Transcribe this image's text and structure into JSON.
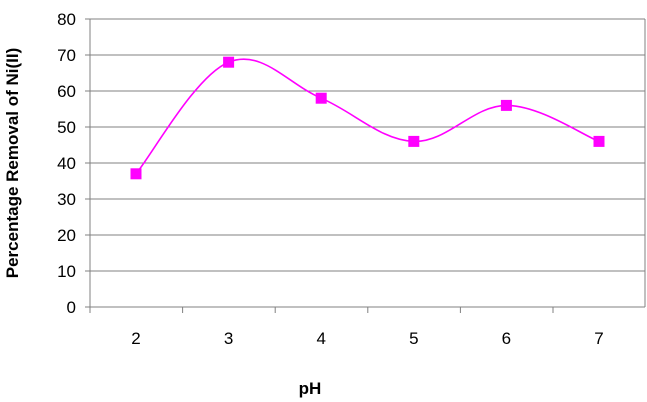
{
  "chart_data": {
    "type": "line",
    "title": "",
    "xlabel": "pH",
    "ylabel": "Percentage  Removal of  Ni(II)",
    "categories": [
      "2",
      "3",
      "4",
      "5",
      "6",
      "7"
    ],
    "series": [
      {
        "values": [
          37,
          68,
          58,
          46,
          56,
          46
        ]
      }
    ],
    "ylim": [
      0,
      80
    ],
    "yticks": [
      "0",
      "10",
      "20",
      "30",
      "40",
      "50",
      "60",
      "70",
      "80"
    ],
    "grid": "horizontal",
    "legend": "none",
    "line_style": "smoothed",
    "marker": "square",
    "colors": {
      "series": "#ff00ff",
      "plot_border": "#808080",
      "gridline": "#808080",
      "axis": "#808080"
    }
  }
}
